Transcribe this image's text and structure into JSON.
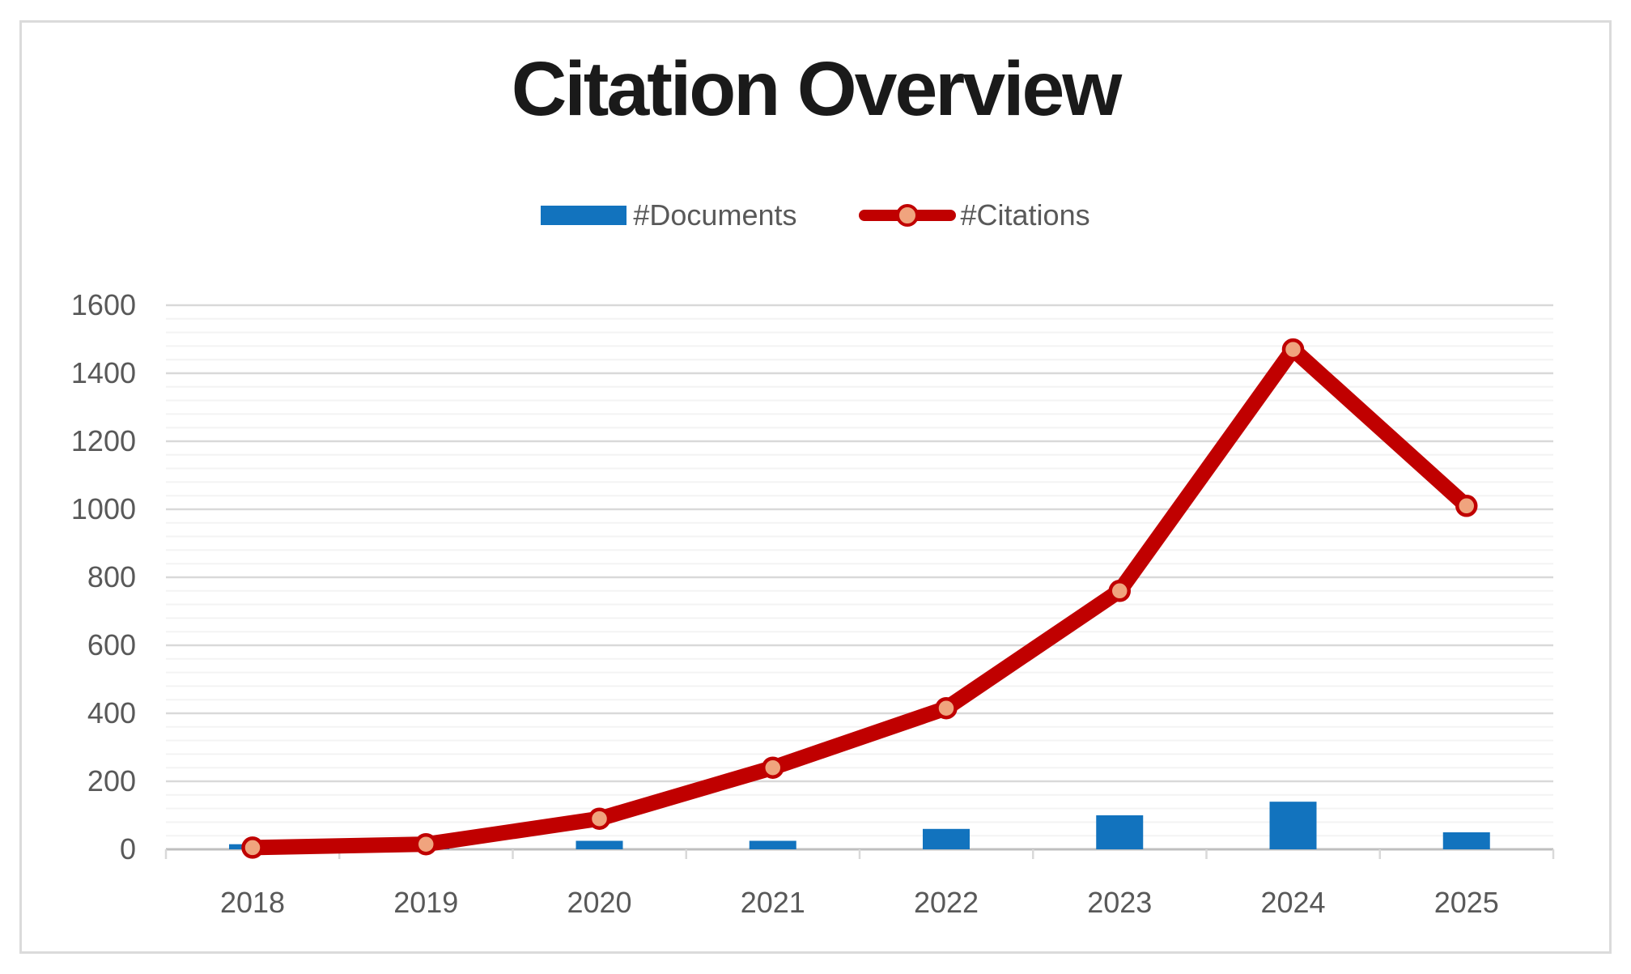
{
  "chart": {
    "title": "Citation Overview",
    "legend": [
      "#Documents",
      "#Citations"
    ]
  },
  "colors": {
    "bar_blue": "#1273BE",
    "line_red": "#C00000",
    "marker_peach": "#F0A47E",
    "axis_text_gray": "#595959",
    "title_black": "#1A1A1A",
    "major_gridline": "#D9D9D9",
    "minor_gridline": "#F3F3F3",
    "axis_line": "#BFBFBF",
    "panel_border": "#DBDBDB"
  },
  "chart_data": {
    "type": "bar",
    "subtype": "combo bar+line",
    "title": "Citation Overview",
    "categories": [
      "2018",
      "2019",
      "2020",
      "2021",
      "2022",
      "2023",
      "2024",
      "2025"
    ],
    "series": [
      {
        "name": "#Documents",
        "type": "bar",
        "color": "#1273BE",
        "values": [
          15,
          15,
          25,
          25,
          60,
          100,
          140,
          50
        ]
      },
      {
        "name": "#Citations",
        "type": "line",
        "color": "#C00000",
        "marker_fill": "#F0A47E",
        "values": [
          5,
          15,
          90,
          240,
          415,
          760,
          1470,
          1010
        ]
      }
    ],
    "xlabel": "",
    "ylabel": "",
    "ylim": [
      0,
      1600
    ],
    "yticks": [
      0,
      200,
      400,
      600,
      800,
      1000,
      1200,
      1400,
      1600
    ],
    "minor_grid_step": 40,
    "grid": "horizontal major + minor",
    "legend_position": "top center"
  }
}
